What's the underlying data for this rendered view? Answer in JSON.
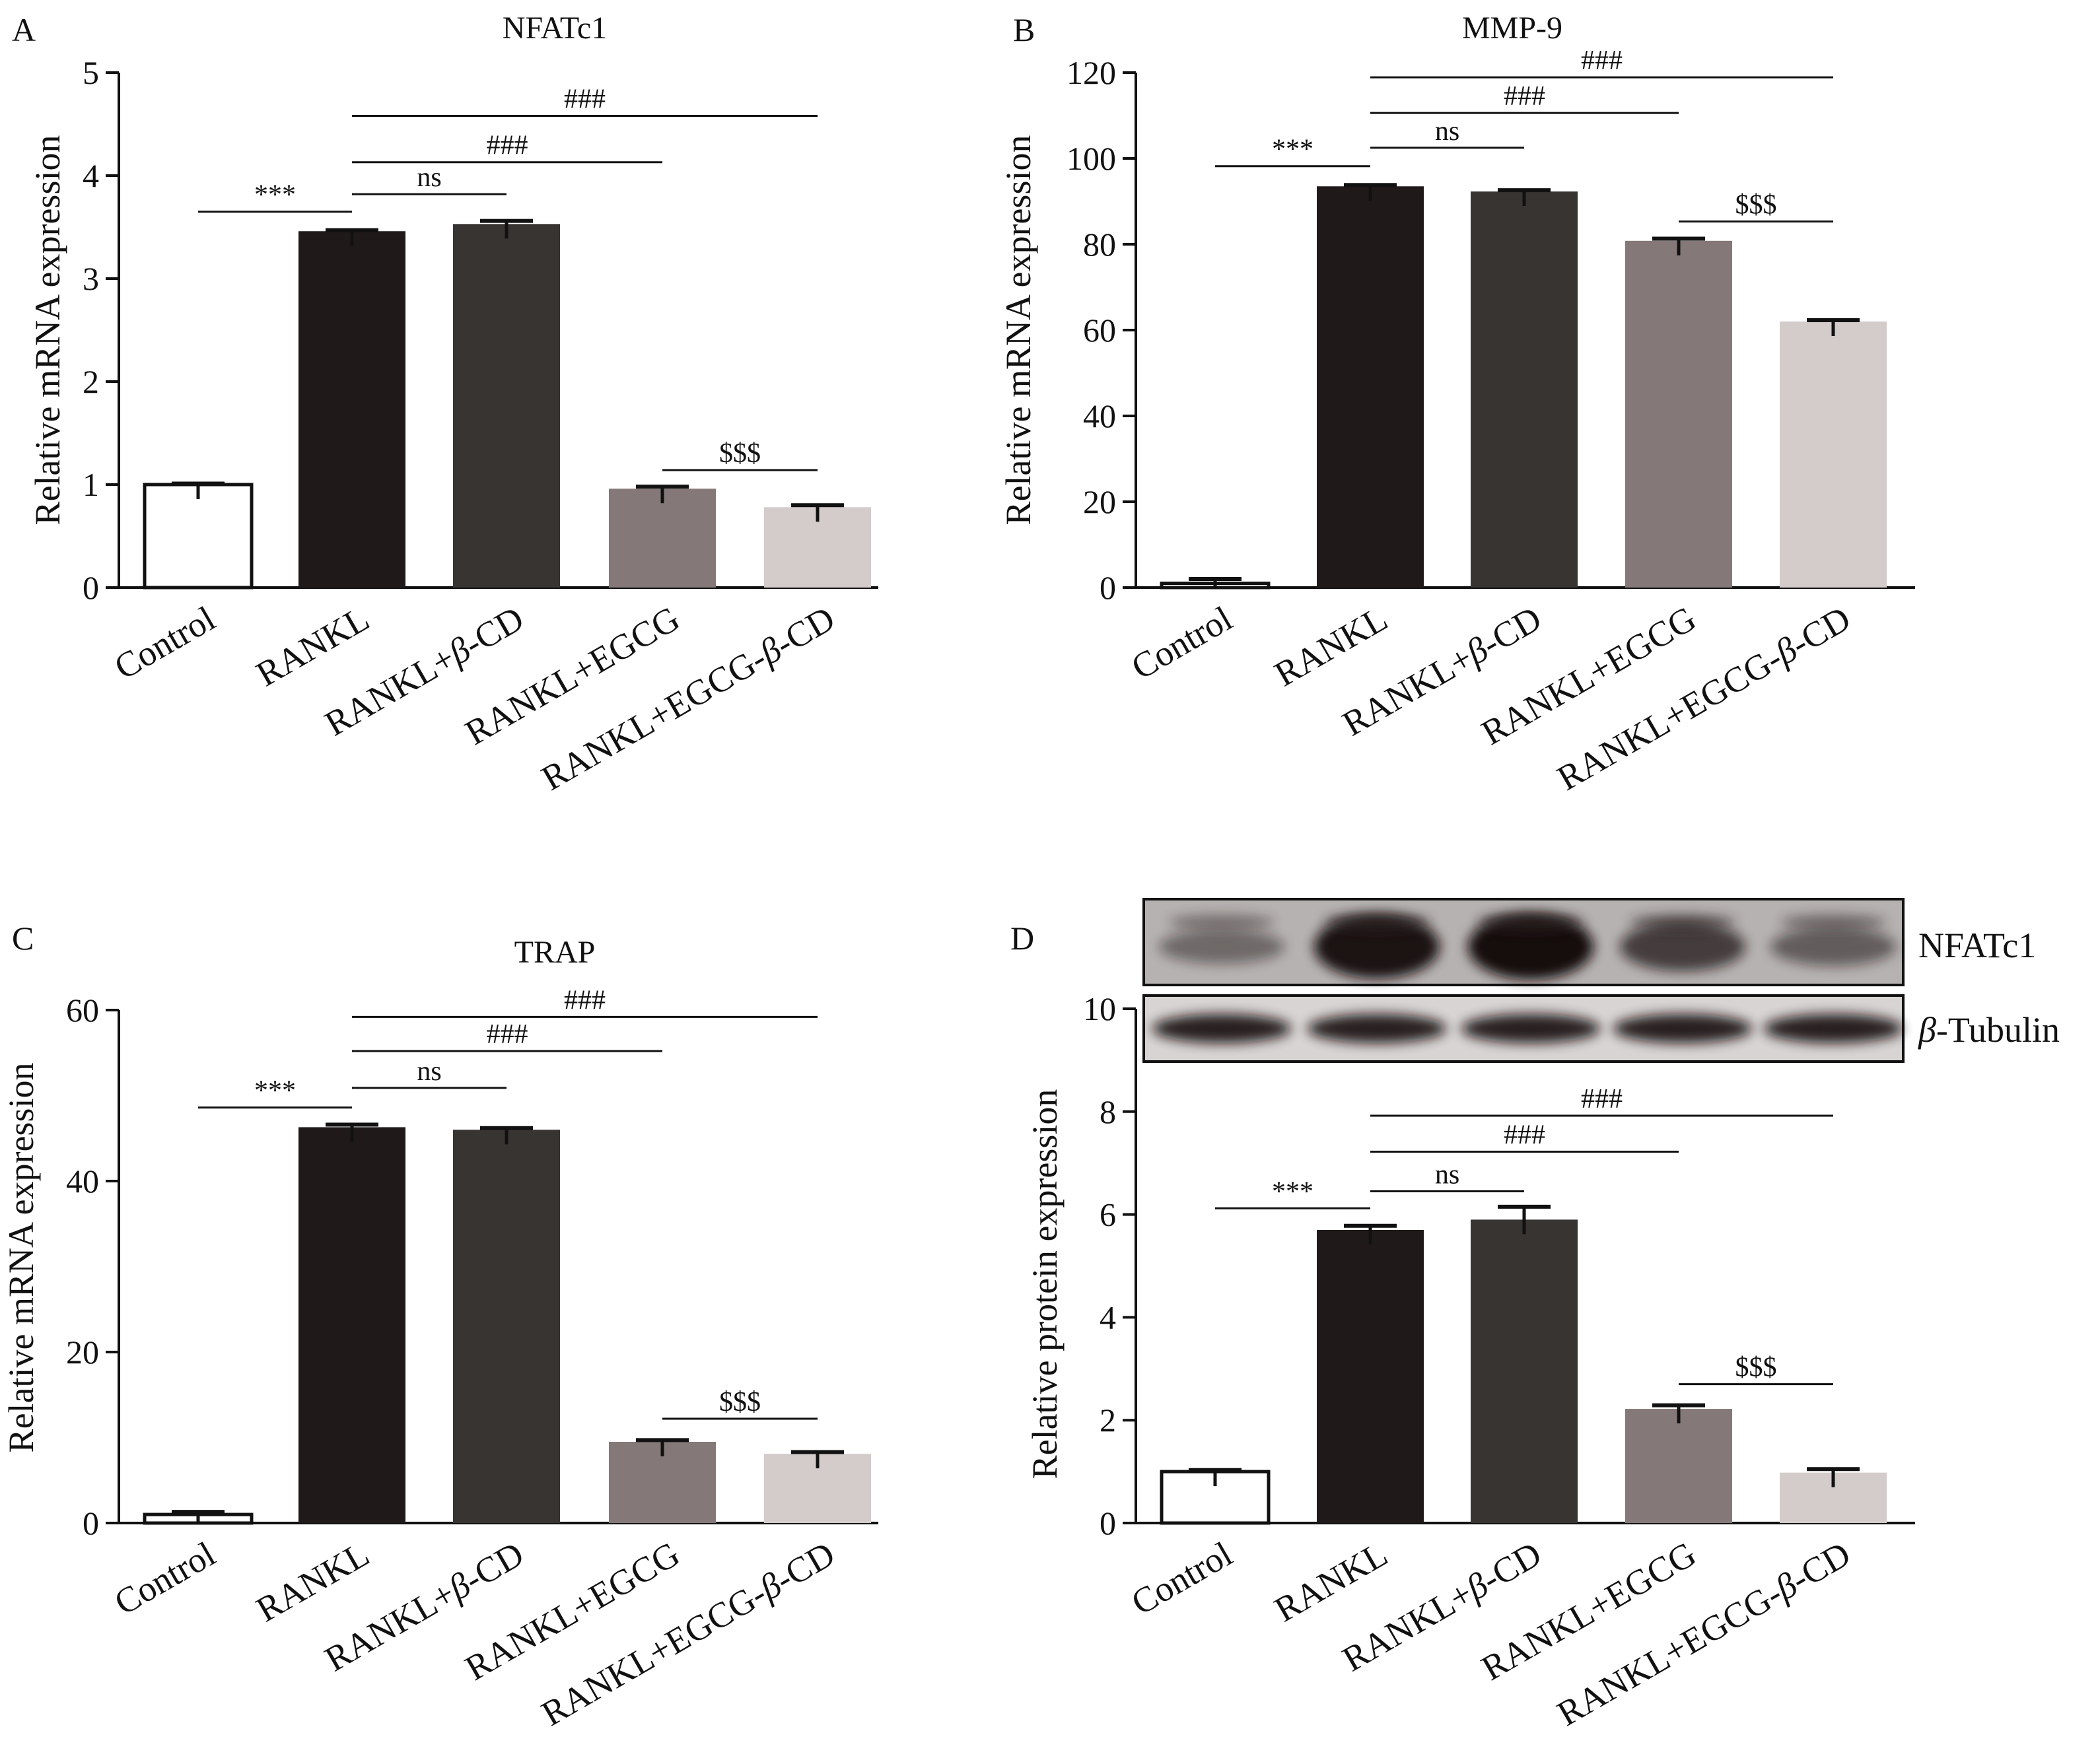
{
  "figure": {
    "background": "#ffffff",
    "ink": "#111111"
  },
  "group_order": [
    "Control",
    "RANKL",
    "RANKL+β-CD",
    "RANKL+EGCG",
    "RANKL+EGCG-β-CD"
  ],
  "colors": [
    "#ffffff",
    "#1f1a19",
    "#383432",
    "#847978",
    "#d3cccb"
  ],
  "chart_data": [
    {
      "panel": "A",
      "type": "bar",
      "title": "NFATc1",
      "ylabel": "Relative mRNA expression",
      "categories": [
        "Control",
        "RANKL",
        "RANKL+β-CD",
        "RANKL+EGCG",
        "RANKL+EGCG-β-CD"
      ],
      "values": [
        1.0,
        3.46,
        3.53,
        0.96,
        0.78
      ],
      "errors": [
        0.01,
        0.01,
        0.03,
        0.02,
        0.02
      ],
      "ylim": [
        0,
        5
      ],
      "yticks": [
        0,
        1,
        2,
        3,
        4,
        5
      ],
      "significance": [
        {
          "from": "Control",
          "to": "RANKL",
          "label": "***",
          "y": 3.65
        },
        {
          "from": "RANKL",
          "to": "RANKL+β-CD",
          "label": "ns",
          "y": 3.82
        },
        {
          "from": "RANKL",
          "to": "RANKL+EGCG",
          "label": "###",
          "y": 4.13
        },
        {
          "from": "RANKL",
          "to": "RANKL+EGCG-β-CD",
          "label": "###",
          "y": 4.58
        },
        {
          "from": "RANKL+EGCG",
          "to": "RANKL+EGCG-β-CD",
          "label": "$$$",
          "y": 1.14
        }
      ]
    },
    {
      "panel": "B",
      "type": "bar",
      "title": "MMP-9",
      "ylabel": "Relative mRNA expression",
      "categories": [
        "Control",
        "RANKL",
        "RANKL+β-CD",
        "RANKL+EGCG",
        "RANKL+EGCG-β-CD"
      ],
      "values": [
        1.0,
        93.5,
        92.3,
        80.8,
        62.0
      ],
      "errors": [
        1.0,
        0.3,
        0.3,
        0.5,
        0.3
      ],
      "ylim": [
        0,
        120
      ],
      "yticks": [
        0,
        20,
        40,
        60,
        80,
        100,
        120
      ],
      "significance": [
        {
          "from": "Control",
          "to": "RANKL",
          "label": "***",
          "y": 98.2
        },
        {
          "from": "RANKL",
          "to": "RANKL+β-CD",
          "label": "ns",
          "y": 102.5
        },
        {
          "from": "RANKL",
          "to": "RANKL+EGCG",
          "label": "###",
          "y": 110.6
        },
        {
          "from": "RANKL",
          "to": "RANKL+EGCG-β-CD",
          "label": "###",
          "y": 118.9
        },
        {
          "from": "RANKL+EGCG",
          "to": "RANKL+EGCG-β-CD",
          "label": "$$$",
          "y": 85.3
        }
      ]
    },
    {
      "panel": "C",
      "type": "bar",
      "title": "TRAP",
      "ylabel": "Relative mRNA expression",
      "categories": [
        "Control",
        "RANKL",
        "RANKL+β-CD",
        "RANKL+EGCG",
        "RANKL+EGCG-β-CD"
      ],
      "values": [
        1.0,
        46.3,
        46.0,
        9.5,
        8.1
      ],
      "errors": [
        0.3,
        0.3,
        0.2,
        0.2,
        0.2
      ],
      "ylim": [
        0,
        60
      ],
      "yticks": [
        0,
        20,
        40,
        60
      ],
      "significance": [
        {
          "from": "Control",
          "to": "RANKL",
          "label": "***",
          "y": 48.6
        },
        {
          "from": "RANKL",
          "to": "RANKL+β-CD",
          "label": "ns",
          "y": 50.9
        },
        {
          "from": "RANKL",
          "to": "RANKL+EGCG",
          "label": "###",
          "y": 55.2
        },
        {
          "from": "RANKL",
          "to": "RANKL+EGCG-β-CD",
          "label": "###",
          "y": 59.2
        },
        {
          "from": "RANKL+EGCG",
          "to": "RANKL+EGCG-β-CD",
          "label": "$$$",
          "y": 12.2
        }
      ]
    },
    {
      "panel": "D",
      "type": "bar",
      "title": "",
      "ylabel": "Relative protein expression",
      "categories": [
        "Control",
        "RANKL",
        "RANKL+β-CD",
        "RANKL+EGCG",
        "RANKL+EGCG-β-CD"
      ],
      "values": [
        1.0,
        5.7,
        5.9,
        2.22,
        0.98
      ],
      "errors": [
        0.03,
        0.08,
        0.25,
        0.07,
        0.07
      ],
      "ylim": [
        0,
        10
      ],
      "yticks": [
        0,
        2,
        4,
        6,
        8,
        10
      ],
      "significance": [
        {
          "from": "Control",
          "to": "RANKL",
          "label": "***",
          "y": 6.12
        },
        {
          "from": "RANKL",
          "to": "RANKL+β-CD",
          "label": "ns",
          "y": 6.45
        },
        {
          "from": "RANKL",
          "to": "RANKL+EGCG",
          "label": "###",
          "y": 7.22
        },
        {
          "from": "RANKL",
          "to": "RANKL+EGCG-β-CD",
          "label": "###",
          "y": 7.92
        },
        {
          "from": "RANKL+EGCG",
          "to": "RANKL+EGCG-β-CD",
          "label": "$$$",
          "y": 2.7
        }
      ]
    }
  ],
  "blot": {
    "bands": [
      {
        "label_prefix": "",
        "label_text": "NFATc1",
        "intensities": [
          0.25,
          0.95,
          1.0,
          0.6,
          0.35
        ]
      },
      {
        "label_prefix": "β",
        "label_text": "-Tubulin",
        "intensities": [
          0.9,
          0.9,
          0.9,
          0.9,
          0.9
        ]
      }
    ]
  }
}
